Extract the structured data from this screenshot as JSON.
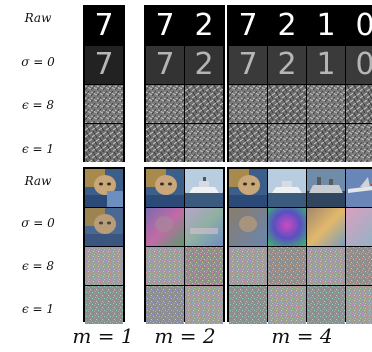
{
  "row_labels": {
    "raw": "Raw",
    "sigma0": "σ = 0",
    "eps8": "ϵ = 8",
    "eps1": "ϵ = 1"
  },
  "column_labels": [
    "m = 1",
    "m = 2",
    "m = 4"
  ],
  "mnist_digits": [
    "7",
    "7",
    "2",
    "7",
    "2",
    "1",
    "0"
  ]
}
